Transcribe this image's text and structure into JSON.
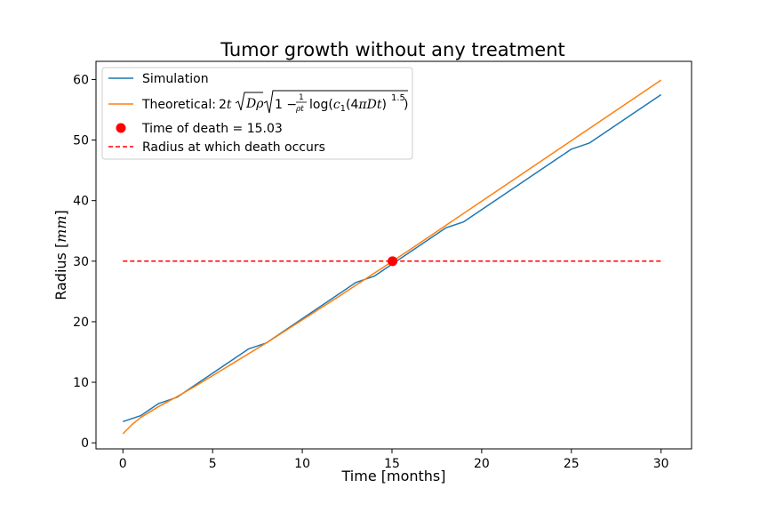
{
  "chart_data": {
    "type": "line",
    "title": "Tumor growth without any treatment",
    "xlabel": "Time [months]",
    "ylabel": "Radius [mm]",
    "ylabel_parts": {
      "prefix": "Radius [",
      "unit": "mm",
      "suffix": "]"
    },
    "xlim": [
      -1.5,
      31.7
    ],
    "ylim": [
      -1,
      63
    ],
    "xticks": [
      0,
      5,
      10,
      15,
      20,
      25,
      30
    ],
    "yticks": [
      0,
      10,
      20,
      30,
      40,
      50,
      60
    ],
    "grid": false,
    "legend_position": "top-left",
    "series": [
      {
        "name": "Simulation",
        "kind": "line",
        "color": "#1f77b4",
        "x": [
          0,
          1,
          2,
          3,
          4,
          5,
          6,
          7,
          8,
          9,
          10,
          11,
          12,
          13,
          14,
          15,
          16,
          17,
          18,
          19,
          20,
          21,
          22,
          23,
          24,
          25,
          26,
          27,
          28,
          29,
          30
        ],
        "y": [
          3.5,
          4.5,
          6.5,
          7.5,
          9.5,
          11.5,
          13.5,
          15.5,
          16.5,
          18.5,
          20.5,
          22.5,
          24.5,
          26.5,
          27.5,
          29.5,
          31.5,
          33.5,
          35.5,
          36.5,
          38.5,
          40.5,
          42.5,
          44.5,
          46.5,
          48.5,
          49.5,
          51.5,
          53.5,
          55.5,
          57.5
        ]
      },
      {
        "name": "Theoretical",
        "kind": "line",
        "color": "#ff7f0e",
        "x": [
          0,
          0.5,
          1,
          2,
          3,
          4,
          6,
          8,
          10,
          12,
          14,
          16,
          18,
          20,
          22,
          24,
          26,
          28,
          30
        ],
        "y": [
          1.5,
          3.0,
          4.2,
          6.0,
          7.6,
          9.3,
          12.9,
          16.5,
          20.3,
          24.1,
          28.0,
          31.9,
          35.9,
          39.9,
          43.9,
          47.9,
          51.9,
          55.9,
          59.9
        ]
      },
      {
        "name": "Time of death = 15.03",
        "kind": "point",
        "color": "#ff0000",
        "x": [
          15.03
        ],
        "y": [
          30
        ]
      },
      {
        "name": "Radius at which death occurs",
        "kind": "dashed",
        "color": "#ff0000",
        "x": [
          0,
          30
        ],
        "y": [
          30,
          30
        ]
      }
    ],
    "legend": {
      "simulation": "Simulation",
      "theoretical_prefix": "Theoretical: ",
      "death_point": "Time of death = 15.03",
      "death_line": "Radius at which death occurs"
    }
  }
}
